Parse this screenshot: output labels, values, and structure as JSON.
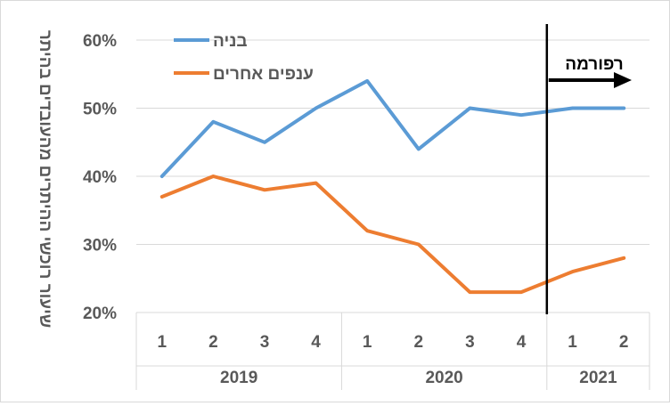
{
  "chart_data": {
    "type": "line",
    "title": "",
    "ylabel": "שיעור רוכשי ההיתרים מהעובדים בהיתר",
    "ylim": [
      0.2,
      0.6
    ],
    "y_ticks": [
      "20%",
      "30%",
      "40%",
      "50%",
      "60%"
    ],
    "y_tick_values": [
      0.2,
      0.3,
      0.4,
      0.5,
      0.6
    ],
    "grid": true,
    "legend": "top-left",
    "categories": [
      "1",
      "2",
      "3",
      "4",
      "1",
      "2",
      "3",
      "4",
      "1",
      "2"
    ],
    "groups": [
      {
        "label": "2019",
        "count": 4
      },
      {
        "label": "2020",
        "count": 4
      },
      {
        "label": "2021",
        "count": 2
      }
    ],
    "series": [
      {
        "name": "בניה",
        "color": "#5b9bd5",
        "values": [
          0.4,
          0.48,
          0.45,
          0.5,
          0.54,
          0.44,
          0.5,
          0.49,
          0.5,
          0.5
        ]
      },
      {
        "name": "ענפים אחרים",
        "color": "#ed7d31",
        "values": [
          0.37,
          0.4,
          0.38,
          0.39,
          0.32,
          0.3,
          0.23,
          0.23,
          0.26,
          0.28
        ]
      }
    ],
    "annotation": {
      "text": "רפורמה",
      "after_category_index": 7
    }
  }
}
